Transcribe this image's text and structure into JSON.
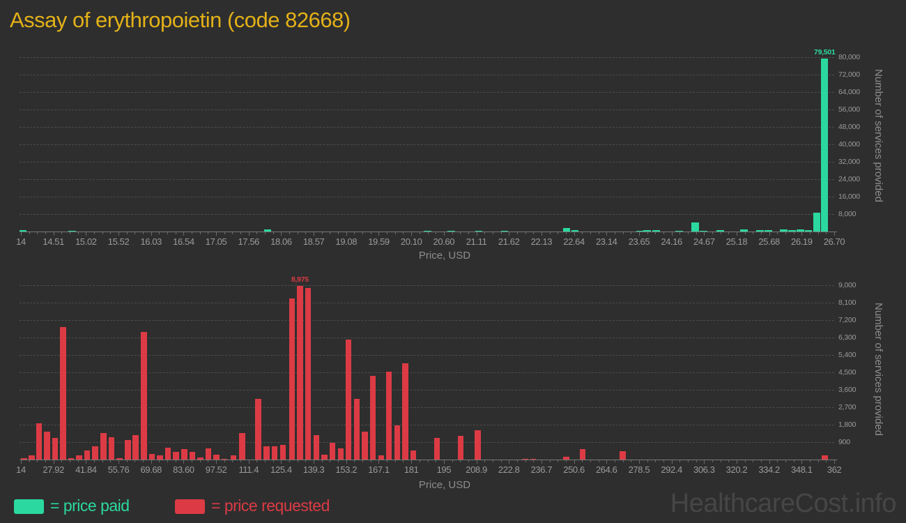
{
  "page": {
    "title": "Assay of erythropoietin (code 82668)",
    "title_color": "#e3b118",
    "background": "#2e2e2e",
    "watermark": "HealthcareCost.info"
  },
  "legend": {
    "paid": {
      "label": "= price paid",
      "color": "#2bd9a0"
    },
    "requested": {
      "label": "= price requested",
      "color": "#dc3b45"
    }
  },
  "chart_data": [
    {
      "type": "bar",
      "series": "price paid",
      "color": "#2bd9a0",
      "xlabel": "Price, USD",
      "ylabel": "Number of services provided",
      "x_range": [
        14,
        26.7
      ],
      "ylim": [
        0,
        80000
      ],
      "grid": true,
      "legend_position": "bottom",
      "x_tick_labels": [
        "14",
        "14.51",
        "15.02",
        "15.52",
        "16.03",
        "16.54",
        "17.05",
        "17.56",
        "18.06",
        "18.57",
        "19.08",
        "19.59",
        "20.10",
        "20.60",
        "21.11",
        "21.62",
        "22.13",
        "22.64",
        "23.14",
        "23.65",
        "24.16",
        "24.67",
        "25.18",
        "25.68",
        "26.19",
        "26.70"
      ],
      "y_ticks": [
        8000,
        16000,
        24000,
        32000,
        40000,
        48000,
        56000,
        64000,
        72000,
        80000
      ],
      "max_value_label": "79,501",
      "points": [
        [
          14.03,
          600
        ],
        [
          14.8,
          300
        ],
        [
          17.85,
          900
        ],
        [
          20.35,
          400
        ],
        [
          20.72,
          400
        ],
        [
          21.15,
          400
        ],
        [
          21.55,
          350
        ],
        [
          22.52,
          1600
        ],
        [
          22.65,
          640
        ],
        [
          23.67,
          430
        ],
        [
          23.78,
          530
        ],
        [
          23.92,
          640
        ],
        [
          24.28,
          430
        ],
        [
          24.53,
          4300
        ],
        [
          24.66,
          430
        ],
        [
          24.92,
          640
        ],
        [
          25.29,
          1070
        ],
        [
          25.54,
          640
        ],
        [
          25.67,
          530
        ],
        [
          25.91,
          850
        ],
        [
          26.04,
          640
        ],
        [
          26.17,
          960
        ],
        [
          26.3,
          640
        ],
        [
          26.43,
          8600
        ],
        [
          26.55,
          79501
        ]
      ]
    },
    {
      "type": "bar",
      "series": "price requested",
      "color": "#dc3b45",
      "xlabel": "Price, USD",
      "ylabel": "Number of services provided",
      "x_range": [
        14,
        362
      ],
      "ylim": [
        0,
        9000
      ],
      "grid": true,
      "legend_position": "bottom",
      "x_tick_labels": [
        "14",
        "27.92",
        "41.84",
        "55.76",
        "69.68",
        "83.60",
        "97.52",
        "111.4",
        "125.4",
        "139.3",
        "153.2",
        "167.1",
        "181",
        "195",
        "208.9",
        "222.8",
        "236.7",
        "250.6",
        "264.6",
        "278.5",
        "292.4",
        "306.3",
        "320.2",
        "334.2",
        "348.1",
        "362"
      ],
      "y_ticks": [
        900,
        1800,
        2700,
        3600,
        4500,
        5400,
        6300,
        7200,
        8100,
        9000
      ],
      "max_value_label": "8,975",
      "points": [
        [
          15.4,
          60
        ],
        [
          18.6,
          200
        ],
        [
          21.8,
          1870
        ],
        [
          25.2,
          1440
        ],
        [
          28.6,
          1120
        ],
        [
          32.0,
          6840
        ],
        [
          35.4,
          80
        ],
        [
          38.9,
          215
        ],
        [
          42.3,
          470
        ],
        [
          45.8,
          690
        ],
        [
          49.3,
          1370
        ],
        [
          52.7,
          1160
        ],
        [
          56.2,
          80
        ],
        [
          59.7,
          1000
        ],
        [
          63.1,
          1260
        ],
        [
          66.6,
          6600
        ],
        [
          70.0,
          300
        ],
        [
          73.5,
          230
        ],
        [
          76.9,
          600
        ],
        [
          80.4,
          410
        ],
        [
          83.9,
          530
        ],
        [
          87.3,
          390
        ],
        [
          90.8,
          120
        ],
        [
          94.2,
          575
        ],
        [
          97.7,
          250
        ],
        [
          101.1,
          50
        ],
        [
          104.9,
          200
        ],
        [
          108.7,
          1380
        ],
        [
          115.5,
          3150
        ],
        [
          119.1,
          700
        ],
        [
          122.6,
          700
        ],
        [
          126.1,
          740
        ],
        [
          130.0,
          8300
        ],
        [
          133.4,
          8975
        ],
        [
          136.9,
          8850
        ],
        [
          140.4,
          1260
        ],
        [
          143.9,
          260
        ],
        [
          147.3,
          865
        ],
        [
          150.8,
          575
        ],
        [
          154.2,
          6200
        ],
        [
          157.7,
          3130
        ],
        [
          161.2,
          1440
        ],
        [
          164.6,
          4320
        ],
        [
          168.1,
          230
        ],
        [
          171.5,
          4530
        ],
        [
          175.0,
          1760
        ],
        [
          178.5,
          4970
        ],
        [
          181.9,
          470
        ],
        [
          192.0,
          1130
        ],
        [
          202.2,
          1220
        ],
        [
          209.4,
          1520
        ],
        [
          229.8,
          50
        ],
        [
          233.2,
          30
        ],
        [
          247.4,
          160
        ],
        [
          254.3,
          550
        ],
        [
          271.5,
          450
        ],
        [
          357.9,
          200
        ]
      ]
    }
  ]
}
